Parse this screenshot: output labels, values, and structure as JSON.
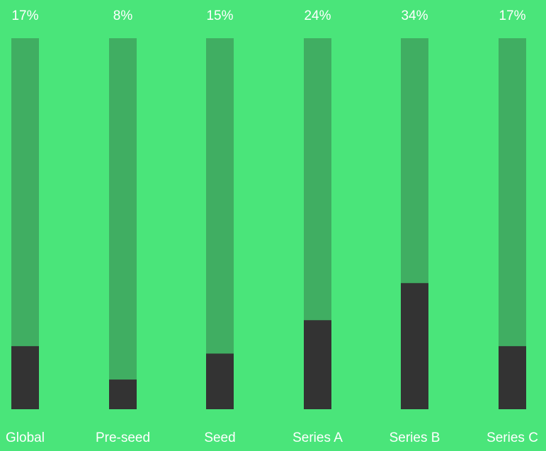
{
  "colors": {
    "background": "#4ae57a",
    "track": "#40ae62",
    "fill": "#333333",
    "text": "#ffffff"
  },
  "chart_data": {
    "type": "bar",
    "categories": [
      "Global",
      "Pre-seed",
      "Seed",
      "Series A",
      "Series B",
      "Series C"
    ],
    "values": [
      17,
      8,
      15,
      24,
      34,
      17
    ],
    "value_labels": [
      "17%",
      "8%",
      "15%",
      "24%",
      "34%",
      "17%"
    ],
    "ylim": [
      0,
      100
    ],
    "unit": "%",
    "grid": false,
    "legend": "none"
  }
}
